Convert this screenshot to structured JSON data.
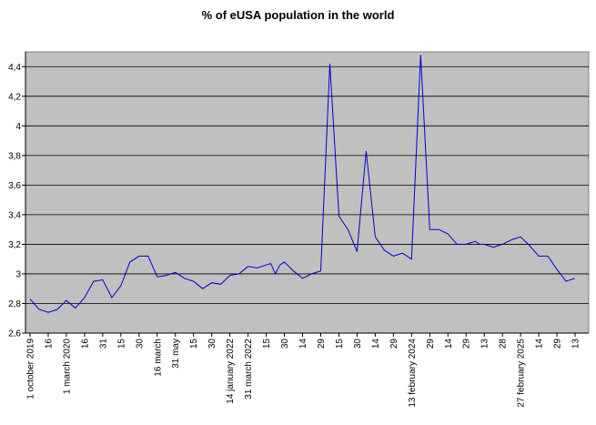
{
  "chart_data": {
    "type": "line",
    "title": "% of eUSA population in the world",
    "xlabel": "",
    "ylabel": "",
    "ylim": [
      2.6,
      4.5
    ],
    "grid": "horizontal",
    "legend": "none",
    "y_ticks": [
      "2,6",
      "2,8",
      "3",
      "3,2",
      "3,4",
      "3,6",
      "3,8",
      "4",
      "4,2",
      "4,4"
    ],
    "x_ticks": [
      "1 october 2019",
      "16",
      "1 march 2020",
      "16",
      "31",
      "15",
      "30",
      "16 march",
      "31 may",
      "15",
      "30",
      "14 january 2022",
      "31 march 2022",
      "15",
      "30",
      "14",
      "29",
      "15",
      "30",
      "14",
      "29",
      "13 february 2024",
      "29",
      "14",
      "29",
      "13",
      "28",
      "27 february 2025",
      "14",
      "29",
      "13"
    ],
    "series_color": "#0000cc",
    "plot_bg": "#c0c0c0",
    "series": [
      {
        "x": [
          0,
          0.5,
          1,
          1.5,
          2,
          2.5,
          3,
          3.5,
          4,
          4.5,
          5,
          5.5,
          6,
          6.5,
          7,
          7.5,
          8,
          8.5,
          9,
          9.5,
          10,
          10.5,
          11,
          11.5,
          12,
          12.5,
          13,
          13.25,
          13.5,
          13.75,
          14,
          14.5,
          15,
          15.5,
          16,
          16.5,
          17,
          17.5,
          18,
          18.5,
          19,
          19.5,
          20,
          20.5,
          21,
          21.5,
          22,
          22.5,
          23,
          23.5,
          24,
          24.5,
          24.75,
          25,
          25.5,
          26,
          26.5,
          27,
          27.5,
          28,
          28.5,
          29,
          29.5,
          30
        ],
        "values": [
          2.83,
          2.76,
          2.74,
          2.76,
          2.82,
          2.77,
          2.84,
          2.95,
          2.96,
          2.84,
          2.92,
          3.08,
          3.12,
          3.12,
          2.98,
          2.99,
          3.01,
          2.97,
          2.95,
          2.9,
          2.94,
          2.93,
          2.99,
          3.0,
          3.05,
          3.04,
          3.06,
          3.07,
          3.0,
          3.06,
          3.08,
          3.02,
          2.97,
          3.0,
          3.02,
          4.42,
          3.39,
          3.3,
          3.15,
          3.83,
          3.25,
          3.16,
          3.12,
          3.14,
          3.1,
          4.48,
          3.3,
          3.3,
          3.27,
          3.2,
          3.2,
          3.22,
          3.2,
          3.2,
          3.18,
          3.2,
          3.23,
          3.25,
          3.19,
          3.12,
          3.12,
          3.03,
          2.95,
          2.97
        ]
      }
    ]
  }
}
